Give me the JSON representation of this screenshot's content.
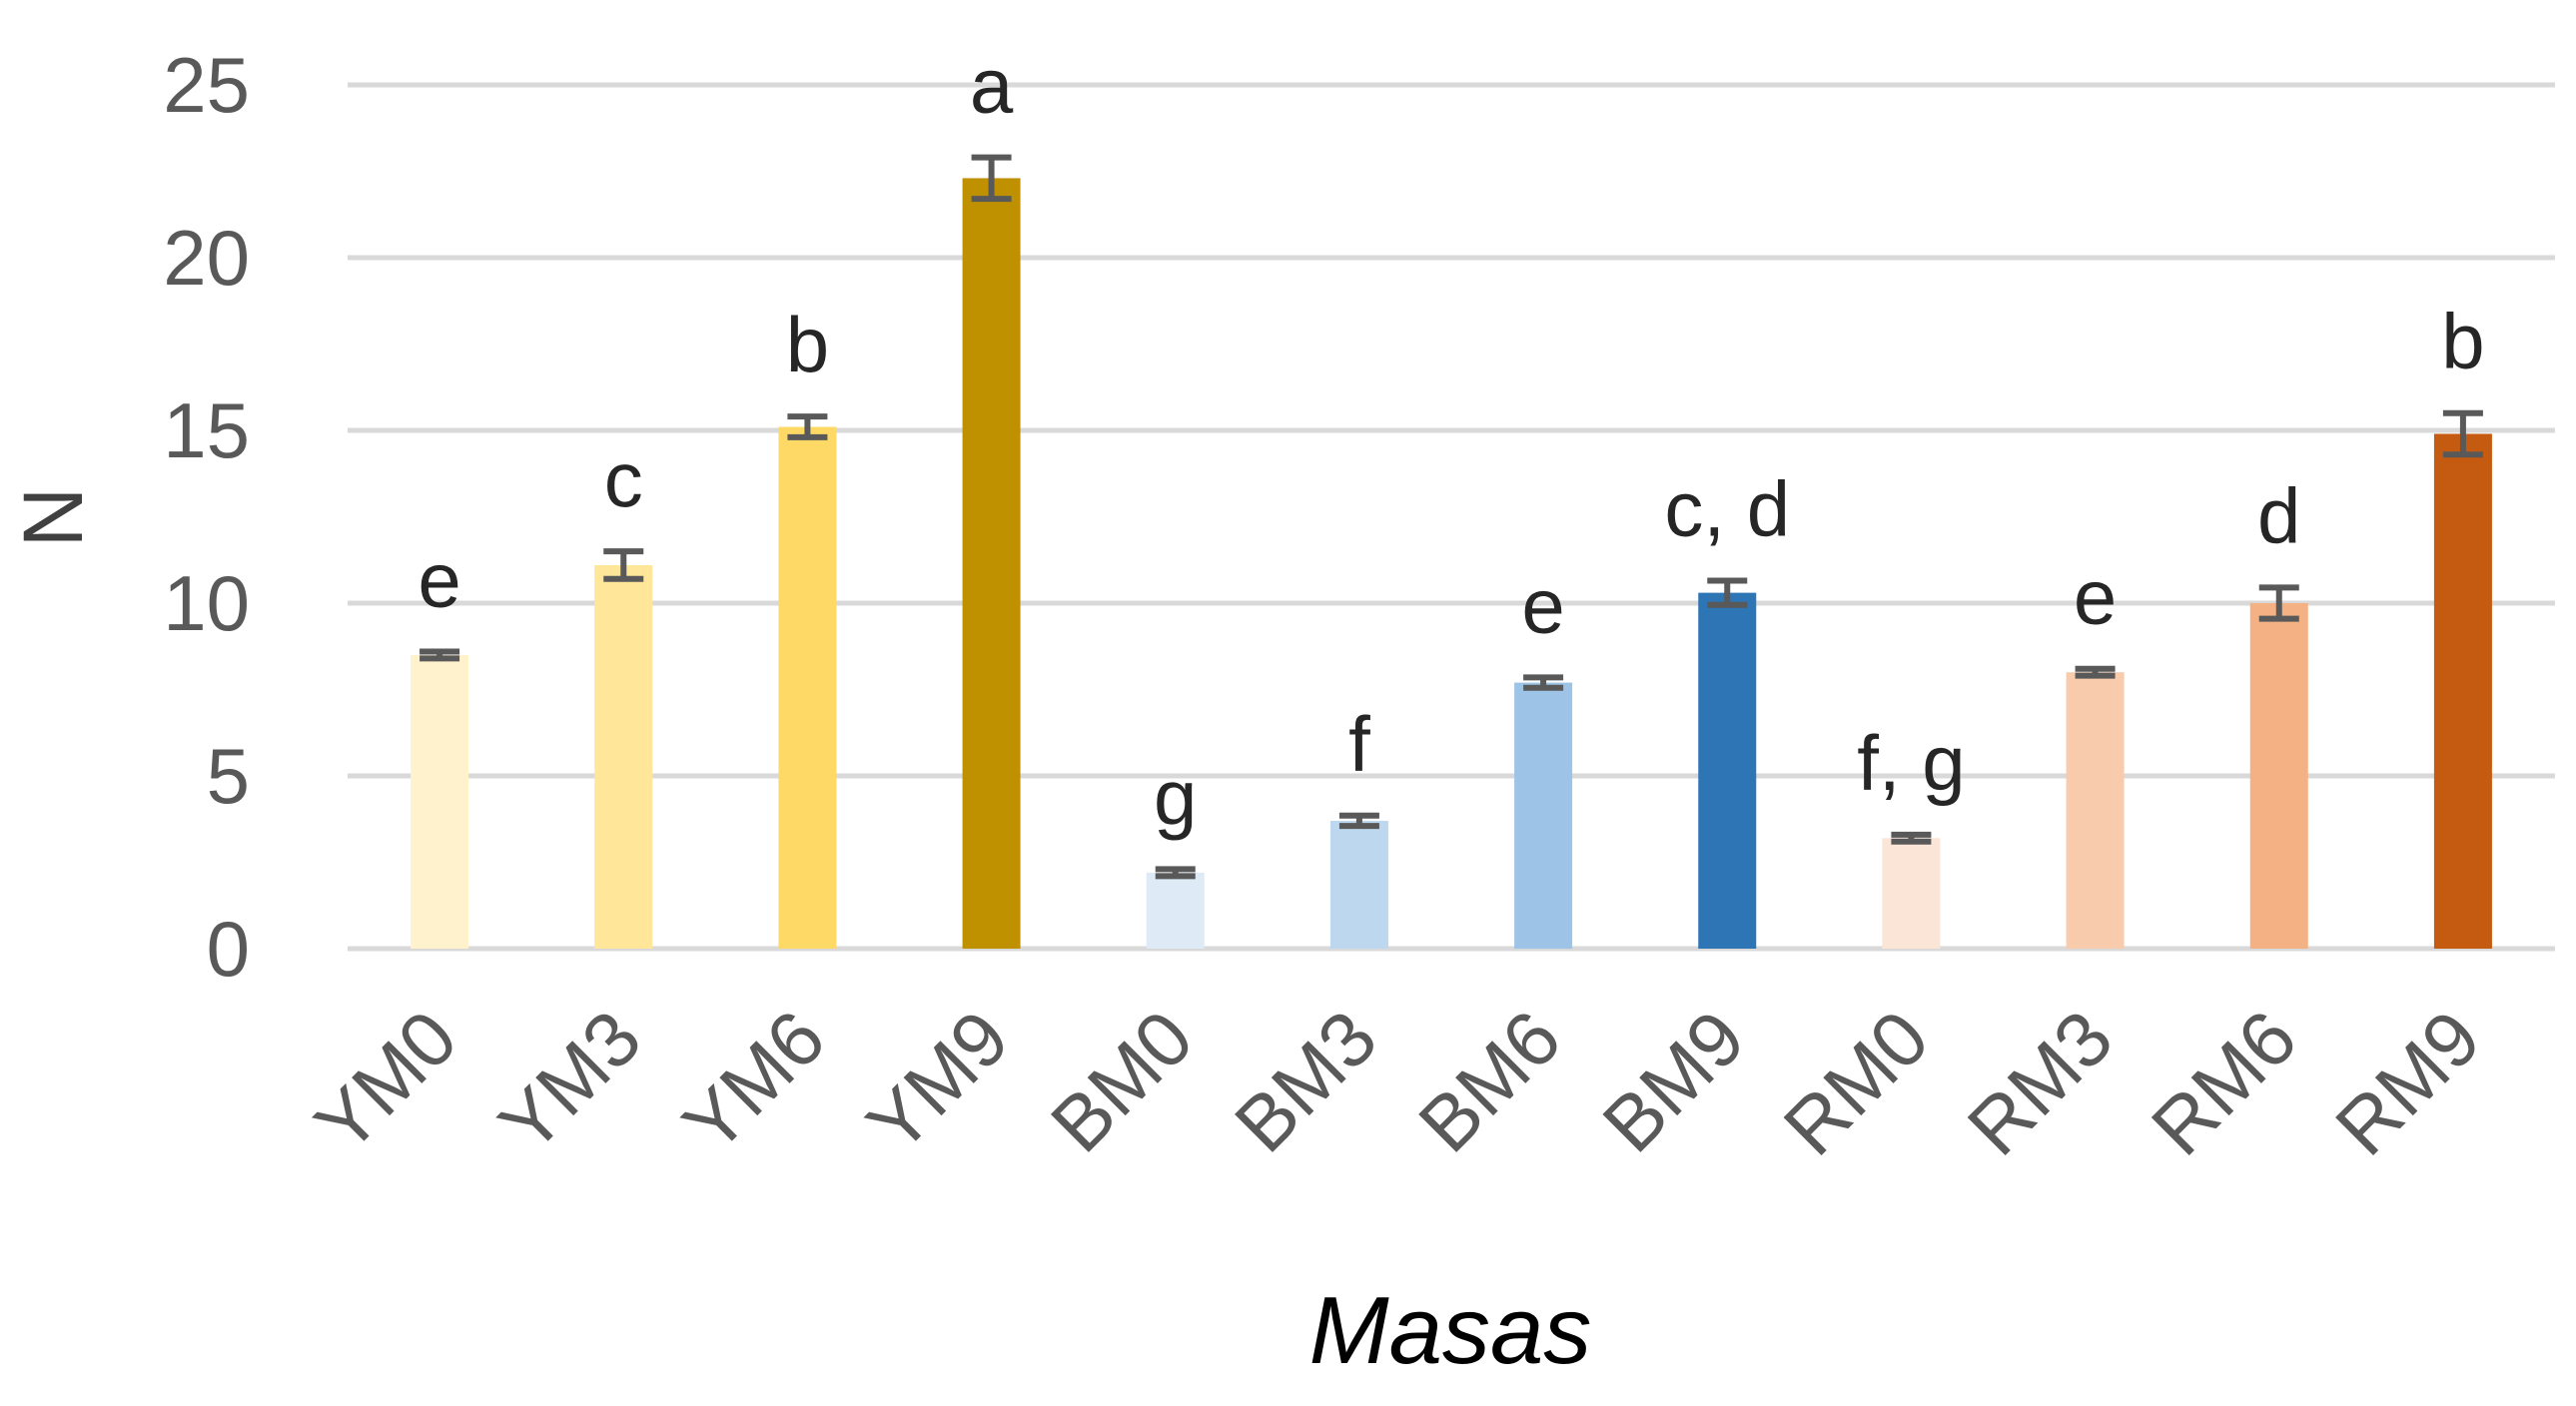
{
  "chart_data": {
    "type": "bar",
    "title": "",
    "xlabel": "Masas",
    "ylabel": "N",
    "ylim": [
      0,
      25
    ],
    "yticks": [
      0,
      5,
      10,
      15,
      20,
      25
    ],
    "grid": true,
    "categories": [
      "YM0",
      "YM3",
      "YM6",
      "YM9",
      "BM0",
      "BM3",
      "BM6",
      "BM9",
      "RM0",
      "RM3",
      "RM6",
      "RM9"
    ],
    "values": [
      8.5,
      11.1,
      15.1,
      22.3,
      2.2,
      3.7,
      7.7,
      10.3,
      3.2,
      8.0,
      10.0,
      14.9
    ],
    "errors": [
      0.1,
      0.4,
      0.3,
      0.6,
      0.1,
      0.15,
      0.15,
      0.35,
      0.1,
      0.1,
      0.45,
      0.6
    ],
    "significance_labels": [
      "e",
      "c",
      "b",
      "a",
      "g",
      "f",
      "e",
      "c, d",
      "f, g",
      "e",
      "d",
      "b"
    ],
    "colors": [
      "#fff2cc",
      "#ffe699",
      "#ffd966",
      "#bf9000",
      "#deebf7",
      "#bdd7ee",
      "#9dc3e6",
      "#2e75b6",
      "#fbe5d6",
      "#f8cbad",
      "#f4b183",
      "#c55a11"
    ]
  }
}
